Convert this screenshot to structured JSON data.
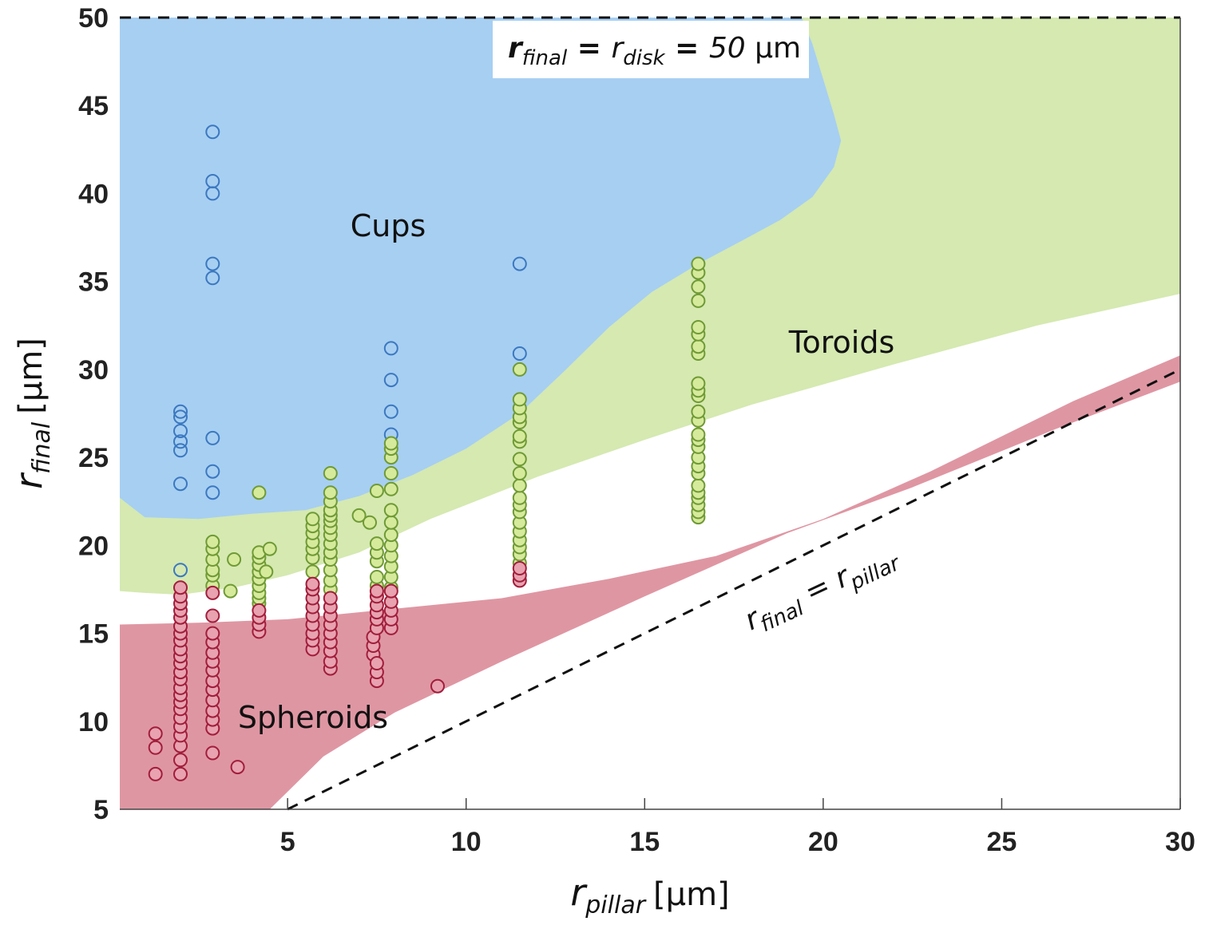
{
  "chart_data": {
    "type": "scatter",
    "title": "",
    "xlabel": {
      "symbol": "r",
      "subscript": "pillar",
      "unit": "[μm]"
    },
    "ylabel": {
      "symbol": "r",
      "subscript": "final",
      "unit": "[μm]"
    },
    "xlim": [
      0.3,
      30
    ],
    "ylim": [
      5,
      50
    ],
    "xticks": [
      5,
      10,
      15,
      20,
      25,
      30
    ],
    "yticks": [
      5,
      10,
      15,
      20,
      25,
      30,
      35,
      40,
      45,
      50
    ],
    "grid": false,
    "colors": {
      "cups_region": "#a7cff2",
      "toroids_region": "#d5e9b1",
      "spheroids_region": "#df96a3",
      "cups_marker": "#3b78c0",
      "toroids_marker": "#6f9a35",
      "toroids_marker_fill": "#d6ea9c",
      "spheroids_marker": "#a11d3b",
      "spheroids_marker_fill": "#e8a2b0"
    },
    "regions": [
      {
        "name": "Cups",
        "boundary": [
          [
            0.3,
            50
          ],
          [
            19.4,
            50
          ],
          [
            19.7,
            48.5
          ],
          [
            20.0,
            46.5
          ],
          [
            20.3,
            44.5
          ],
          [
            20.5,
            43.0
          ],
          [
            20.3,
            41.5
          ],
          [
            19.7,
            39.8
          ],
          [
            18.8,
            38.5
          ],
          [
            17.8,
            37.4
          ],
          [
            16.5,
            36.0
          ],
          [
            15.2,
            34.4
          ],
          [
            14.0,
            32.4
          ],
          [
            12.8,
            30.0
          ],
          [
            11.5,
            27.5
          ],
          [
            10.0,
            25.5
          ],
          [
            8.5,
            24.0
          ],
          [
            7.0,
            22.8
          ],
          [
            5.5,
            22.0
          ],
          [
            4.0,
            21.8
          ],
          [
            2.5,
            21.5
          ],
          [
            1.0,
            21.6
          ],
          [
            0.3,
            22.7
          ]
        ]
      },
      {
        "name": "Toroids",
        "boundary": [
          [
            0.3,
            50
          ],
          [
            30,
            50
          ],
          [
            30,
            34.3
          ],
          [
            26,
            32.5
          ],
          [
            22,
            30.3
          ],
          [
            18,
            28.0
          ],
          [
            15,
            26.0
          ],
          [
            12,
            23.9
          ],
          [
            9,
            21.5
          ],
          [
            7,
            19.6
          ],
          [
            5,
            18.3
          ],
          [
            3.5,
            17.6
          ],
          [
            2,
            17.2
          ],
          [
            1,
            17.3
          ],
          [
            0.3,
            17.4
          ]
        ]
      },
      {
        "name": "Spheroids",
        "boundary": [
          [
            0.3,
            15.5
          ],
          [
            2.5,
            15.6
          ],
          [
            5,
            15.8
          ],
          [
            8,
            16.4
          ],
          [
            11,
            17.0
          ],
          [
            14,
            18.1
          ],
          [
            17,
            19.4
          ],
          [
            20,
            21.5
          ],
          [
            23,
            24.2
          ],
          [
            27,
            28.2
          ],
          [
            30,
            30.8
          ],
          [
            30,
            29.3
          ],
          [
            26.5,
            26.6
          ],
          [
            22.5,
            23.3
          ],
          [
            19,
            20.7
          ],
          [
            15,
            17.1
          ],
          [
            11,
            13.4
          ],
          [
            8,
            10.5
          ],
          [
            6,
            8.0
          ],
          [
            4.5,
            5
          ],
          [
            0.3,
            5
          ]
        ]
      }
    ],
    "reference_lines": [
      {
        "name": "r_final = r_disk",
        "points": [
          [
            0.3,
            50
          ],
          [
            30,
            50
          ]
        ],
        "style": "dashed"
      },
      {
        "name": "r_final = r_pillar",
        "points": [
          [
            5,
            5
          ],
          [
            30,
            30
          ]
        ],
        "style": "dashed"
      }
    ],
    "series": [
      {
        "name": "Cups",
        "points": [
          [
            2.0,
            18.6
          ],
          [
            2.0,
            23.5
          ],
          [
            2.0,
            25.4
          ],
          [
            2.0,
            25.9
          ],
          [
            2.0,
            26.5
          ],
          [
            2.0,
            27.3
          ],
          [
            2.0,
            27.6
          ],
          [
            2.9,
            23.0
          ],
          [
            2.9,
            24.2
          ],
          [
            2.9,
            26.1
          ],
          [
            2.9,
            35.2
          ],
          [
            2.9,
            36.0
          ],
          [
            2.9,
            40.0
          ],
          [
            2.9,
            40.7
          ],
          [
            2.9,
            43.5
          ],
          [
            7.9,
            26.3
          ],
          [
            7.9,
            27.6
          ],
          [
            7.9,
            29.4
          ],
          [
            7.9,
            31.2
          ],
          [
            11.5,
            30.9
          ],
          [
            11.5,
            36.0
          ]
        ]
      },
      {
        "name": "Toroids",
        "points": [
          [
            2.9,
            17.7
          ],
          [
            2.9,
            18.3
          ],
          [
            2.9,
            18.6
          ],
          [
            2.9,
            19.2
          ],
          [
            2.9,
            19.8
          ],
          [
            2.9,
            20.2
          ],
          [
            3.4,
            17.4
          ],
          [
            3.5,
            19.2
          ],
          [
            4.2,
            16.7
          ],
          [
            4.2,
            17.0
          ],
          [
            4.2,
            17.3
          ],
          [
            4.2,
            17.7
          ],
          [
            4.2,
            18.1
          ],
          [
            4.2,
            18.5
          ],
          [
            4.2,
            18.9
          ],
          [
            4.2,
            19.3
          ],
          [
            4.2,
            19.6
          ],
          [
            4.2,
            23.0
          ],
          [
            4.4,
            18.5
          ],
          [
            4.5,
            19.8
          ],
          [
            5.7,
            18.5
          ],
          [
            5.7,
            19.3
          ],
          [
            5.7,
            19.8
          ],
          [
            5.7,
            20.2
          ],
          [
            5.7,
            20.7
          ],
          [
            5.7,
            21.1
          ],
          [
            5.7,
            21.5
          ],
          [
            6.2,
            17.5
          ],
          [
            6.2,
            18.0
          ],
          [
            6.2,
            18.6
          ],
          [
            6.2,
            19.2
          ],
          [
            6.2,
            19.6
          ],
          [
            6.2,
            20.1
          ],
          [
            6.2,
            20.6
          ],
          [
            6.2,
            21.0
          ],
          [
            6.2,
            21.4
          ],
          [
            6.2,
            21.7
          ],
          [
            6.2,
            22.0
          ],
          [
            6.2,
            22.5
          ],
          [
            6.2,
            23.0
          ],
          [
            6.2,
            24.1
          ],
          [
            7.0,
            21.7
          ],
          [
            7.3,
            21.3
          ],
          [
            7.5,
            17.7
          ],
          [
            7.5,
            18.2
          ],
          [
            7.5,
            19.1
          ],
          [
            7.5,
            19.6
          ],
          [
            7.5,
            20.1
          ],
          [
            7.5,
            23.1
          ],
          [
            7.9,
            17.6
          ],
          [
            7.9,
            18.2
          ],
          [
            7.9,
            18.8
          ],
          [
            7.9,
            19.4
          ],
          [
            7.9,
            20.0
          ],
          [
            7.9,
            20.6
          ],
          [
            7.9,
            21.3
          ],
          [
            7.9,
            22.0
          ],
          [
            7.9,
            23.2
          ],
          [
            7.9,
            24.1
          ],
          [
            7.9,
            25.0
          ],
          [
            7.9,
            25.5
          ],
          [
            7.9,
            25.8
          ],
          [
            11.5,
            19.0
          ],
          [
            11.5,
            19.5
          ],
          [
            11.5,
            19.9
          ],
          [
            11.5,
            20.3
          ],
          [
            11.5,
            20.8
          ],
          [
            11.5,
            21.3
          ],
          [
            11.5,
            21.9
          ],
          [
            11.5,
            22.3
          ],
          [
            11.5,
            22.7
          ],
          [
            11.5,
            23.4
          ],
          [
            11.5,
            24.1
          ],
          [
            11.5,
            24.9
          ],
          [
            11.5,
            25.9
          ],
          [
            11.5,
            26.2
          ],
          [
            11.5,
            27.0
          ],
          [
            11.5,
            27.3
          ],
          [
            11.5,
            27.8
          ],
          [
            11.5,
            28.3
          ],
          [
            11.5,
            30.0
          ],
          [
            16.5,
            21.6
          ],
          [
            16.5,
            21.9
          ],
          [
            16.5,
            22.3
          ],
          [
            16.5,
            22.7
          ],
          [
            16.5,
            23.0
          ],
          [
            16.5,
            23.4
          ],
          [
            16.5,
            24.1
          ],
          [
            16.5,
            24.5
          ],
          [
            16.5,
            25.0
          ],
          [
            16.5,
            25.6
          ],
          [
            16.5,
            26.0
          ],
          [
            16.5,
            26.3
          ],
          [
            16.5,
            27.1
          ],
          [
            16.5,
            27.6
          ],
          [
            16.5,
            28.5
          ],
          [
            16.5,
            28.8
          ],
          [
            16.5,
            29.2
          ],
          [
            16.5,
            30.9
          ],
          [
            16.5,
            31.3
          ],
          [
            16.5,
            32.0
          ],
          [
            16.5,
            32.4
          ],
          [
            16.5,
            33.9
          ],
          [
            16.5,
            34.7
          ],
          [
            16.5,
            35.5
          ],
          [
            16.5,
            36.0
          ]
        ]
      },
      {
        "name": "Spheroids",
        "points": [
          [
            1.3,
            7.0
          ],
          [
            1.3,
            8.5
          ],
          [
            1.3,
            9.3
          ],
          [
            2.0,
            7.0
          ],
          [
            2.0,
            7.8
          ],
          [
            2.0,
            8.6
          ],
          [
            2.0,
            9.2
          ],
          [
            2.0,
            9.7
          ],
          [
            2.0,
            10.2
          ],
          [
            2.0,
            10.7
          ],
          [
            2.0,
            11.1
          ],
          [
            2.0,
            11.5
          ],
          [
            2.0,
            11.9
          ],
          [
            2.0,
            12.4
          ],
          [
            2.0,
            12.8
          ],
          [
            2.0,
            13.3
          ],
          [
            2.0,
            13.7
          ],
          [
            2.0,
            14.1
          ],
          [
            2.0,
            14.6
          ],
          [
            2.0,
            15.0
          ],
          [
            2.0,
            15.4
          ],
          [
            2.0,
            15.9
          ],
          [
            2.0,
            16.3
          ],
          [
            2.0,
            16.7
          ],
          [
            2.0,
            17.1
          ],
          [
            2.0,
            17.6
          ],
          [
            2.9,
            8.2
          ],
          [
            2.9,
            9.6
          ],
          [
            2.9,
            10.1
          ],
          [
            2.9,
            10.6
          ],
          [
            2.9,
            11.2
          ],
          [
            2.9,
            11.8
          ],
          [
            2.9,
            12.3
          ],
          [
            2.9,
            12.9
          ],
          [
            2.9,
            13.4
          ],
          [
            2.9,
            13.9
          ],
          [
            2.9,
            14.5
          ],
          [
            2.9,
            15.0
          ],
          [
            2.9,
            16.0
          ],
          [
            2.9,
            17.3
          ],
          [
            3.6,
            7.4
          ],
          [
            4.2,
            15.1
          ],
          [
            4.2,
            15.5
          ],
          [
            4.2,
            15.9
          ],
          [
            4.2,
            16.3
          ],
          [
            5.7,
            14.1
          ],
          [
            5.7,
            14.6
          ],
          [
            5.7,
            15.0
          ],
          [
            5.7,
            15.5
          ],
          [
            5.7,
            16.0
          ],
          [
            5.7,
            16.5
          ],
          [
            5.7,
            17.0
          ],
          [
            5.7,
            17.5
          ],
          [
            5.7,
            17.8
          ],
          [
            6.2,
            13.0
          ],
          [
            6.2,
            13.4
          ],
          [
            6.2,
            14.0
          ],
          [
            6.2,
            14.5
          ],
          [
            6.2,
            15.0
          ],
          [
            6.2,
            15.5
          ],
          [
            6.2,
            16.0
          ],
          [
            6.2,
            16.5
          ],
          [
            6.2,
            17.0
          ],
          [
            7.4,
            13.8
          ],
          [
            7.4,
            14.3
          ],
          [
            7.4,
            14.8
          ],
          [
            7.5,
            12.3
          ],
          [
            7.5,
            12.8
          ],
          [
            7.5,
            13.3
          ],
          [
            7.5,
            15.3
          ],
          [
            7.5,
            15.8
          ],
          [
            7.5,
            16.2
          ],
          [
            7.5,
            16.6
          ],
          [
            7.5,
            17.1
          ],
          [
            7.5,
            17.4
          ],
          [
            7.9,
            15.3
          ],
          [
            7.9,
            15.8
          ],
          [
            7.9,
            16.3
          ],
          [
            7.9,
            16.8
          ],
          [
            7.9,
            17.4
          ],
          [
            9.2,
            12.0
          ],
          [
            11.5,
            18.0
          ],
          [
            11.5,
            18.3
          ],
          [
            11.5,
            18.7
          ]
        ]
      }
    ],
    "annotations": {
      "cups": "Cups",
      "toroids": "Toroids",
      "spheroids": "Spheroids",
      "disk_symbol": "r",
      "disk_sub_final": "final",
      "disk_eq": " = ",
      "disk_symbol2": "r",
      "disk_sub_disk": "disk",
      "disk_eq2": " = ",
      "disk_value": "50",
      "disk_unit": " μm",
      "pillar_symbol": "r",
      "pillar_sub_final": "final",
      "pillar_eq": " = ",
      "pillar_symbol2": "r",
      "pillar_sub_pillar": "pillar"
    }
  }
}
